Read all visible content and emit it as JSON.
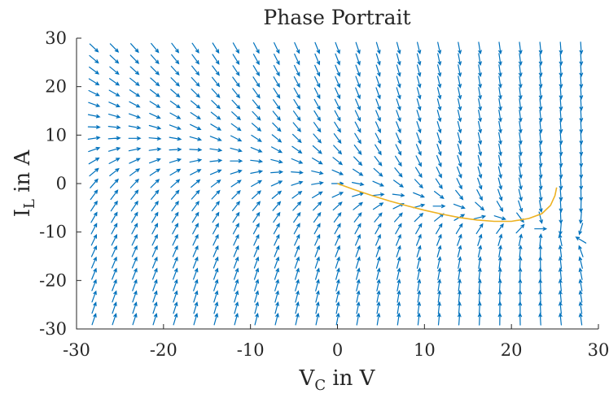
{
  "chart_data": {
    "type": "quiver",
    "title": "Phase Portrait",
    "xlabel": {
      "main": "V",
      "sub": "C",
      "suffix": " in V"
    },
    "ylabel": {
      "main": "I",
      "sub": "L",
      "suffix": " in A"
    },
    "xlim": [
      -30,
      30
    ],
    "ylim": [
      -30,
      30
    ],
    "xticks": [
      -30,
      -20,
      -10,
      0,
      10,
      20,
      30
    ],
    "yticks": [
      -30,
      -20,
      -10,
      0,
      10,
      20,
      30
    ],
    "xtick_labels": [
      "-30",
      "-20",
      "-10",
      "0",
      "10",
      "20",
      "30"
    ],
    "ytick_labels": [
      "-30",
      "-20",
      "-10",
      "0",
      "10",
      "20",
      "30"
    ],
    "grid": false,
    "field": {
      "grid_x_range": [
        -28,
        28
      ],
      "grid_y_range": [
        -28,
        28
      ],
      "grid_count": 25,
      "stable_point": [
        25,
        -10
      ],
      "saddle_point": [
        -25,
        10
      ],
      "color": "#0072BD"
    },
    "trajectory": {
      "color": "#EDB120",
      "x": [
        0,
        2,
        4,
        6,
        8,
        10,
        12,
        14,
        16,
        18,
        20,
        22,
        23.5,
        24.5,
        25,
        25.2
      ],
      "y": [
        0,
        -1.3,
        -2.5,
        -3.6,
        -4.6,
        -5.5,
        -6.3,
        -7.0,
        -7.5,
        -7.8,
        -7.8,
        -7.2,
        -6.2,
        -4.5,
        -2.5,
        -0.8
      ]
    }
  }
}
